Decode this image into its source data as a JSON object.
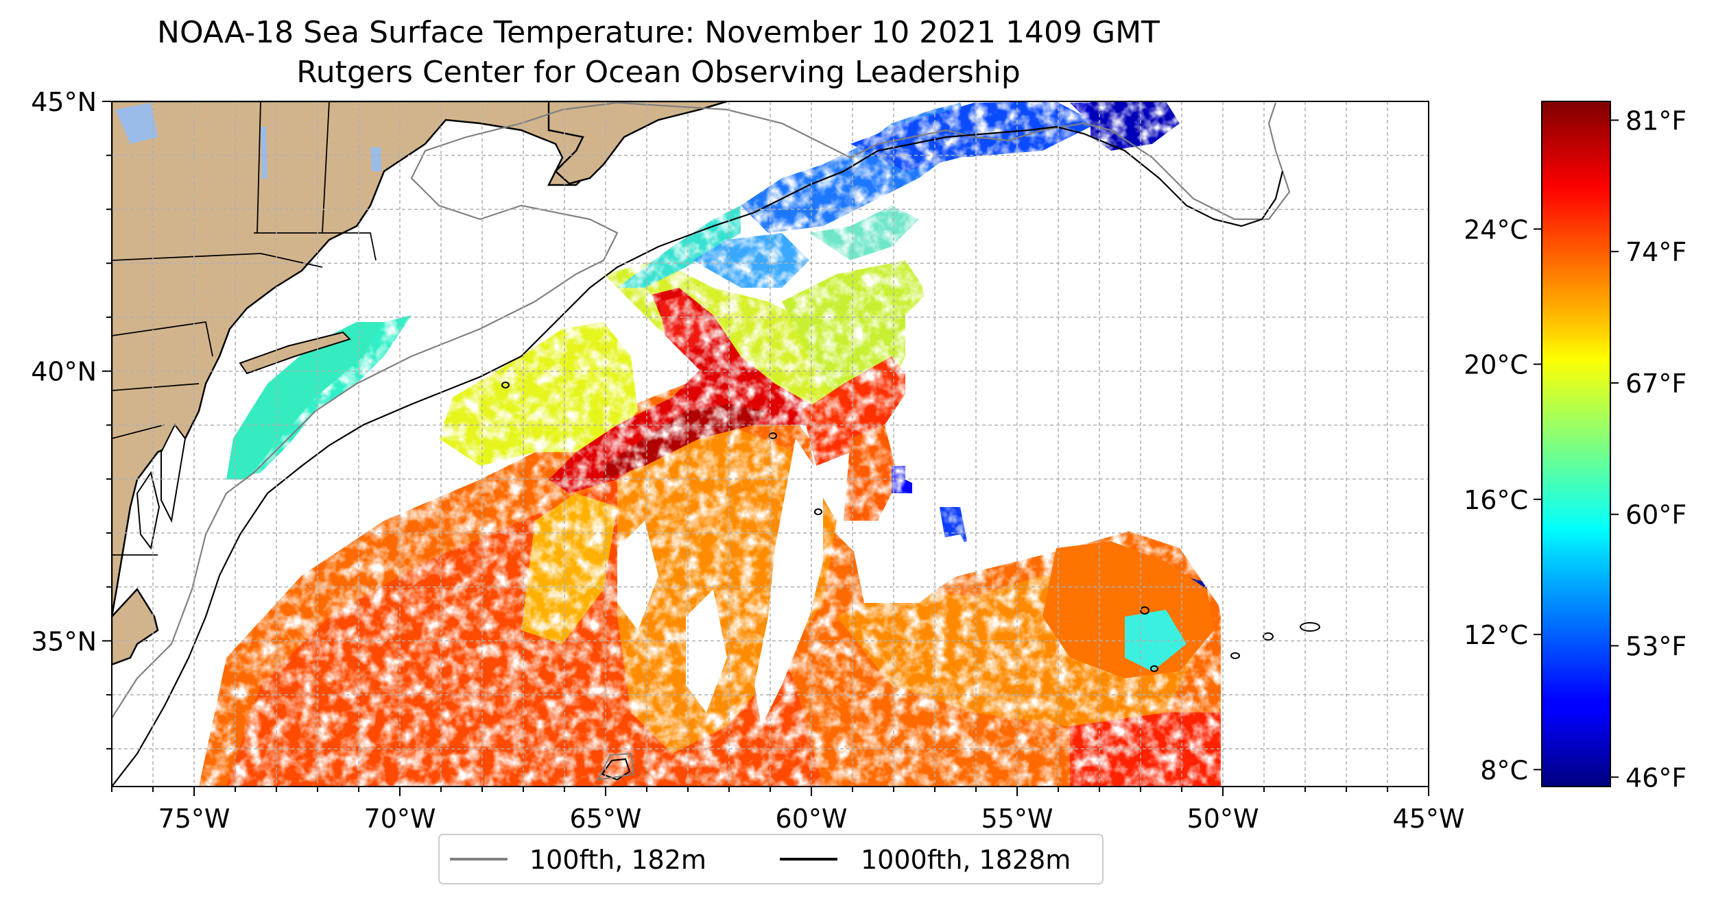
{
  "title": "NOAA-18 Sea Surface Temperature: November 10 2021 1409 GMT",
  "subtitle": "Rutgers Center for Ocean Observing Leadership",
  "map": {
    "lon_range": [
      -77,
      -45
    ],
    "lat_range": [
      32.3,
      45
    ],
    "lon_ticks": [
      {
        "value": -75,
        "label": "75°W"
      },
      {
        "value": -70,
        "label": "70°W"
      },
      {
        "value": -65,
        "label": "65°W"
      },
      {
        "value": -60,
        "label": "60°W"
      },
      {
        "value": -55,
        "label": "55°W"
      },
      {
        "value": -50,
        "label": "50°W"
      },
      {
        "value": -45,
        "label": "45°W"
      }
    ],
    "lat_ticks": [
      {
        "value": 45,
        "label": "45°N"
      },
      {
        "value": 40,
        "label": "40°N"
      },
      {
        "value": 35,
        "label": "35°N"
      }
    ],
    "gridlines": "dashed",
    "land_color": "#d2b48c",
    "lake_color": "#9bbbe8",
    "palette": "jet"
  },
  "legend": {
    "items": [
      {
        "label": "100fth, 182m",
        "color": "#808080"
      },
      {
        "label": "1000fth, 1828m",
        "color": "#000000"
      }
    ]
  },
  "colorbar": {
    "range_f": [
      45.5,
      82
    ],
    "celsius_ticks": [
      {
        "value": 8,
        "label": "8°C"
      },
      {
        "value": 12,
        "label": "12°C"
      },
      {
        "value": 16,
        "label": "16°C"
      },
      {
        "value": 20,
        "label": "20°C"
      },
      {
        "value": 24,
        "label": "24°C"
      }
    ],
    "fahrenheit_ticks": [
      {
        "value": 46,
        "label": "46°F"
      },
      {
        "value": 53,
        "label": "53°F"
      },
      {
        "value": 60,
        "label": "60°F"
      },
      {
        "value": 67,
        "label": "67°F"
      },
      {
        "value": 74,
        "label": "74°F"
      },
      {
        "value": 81,
        "label": "81°F"
      }
    ]
  }
}
